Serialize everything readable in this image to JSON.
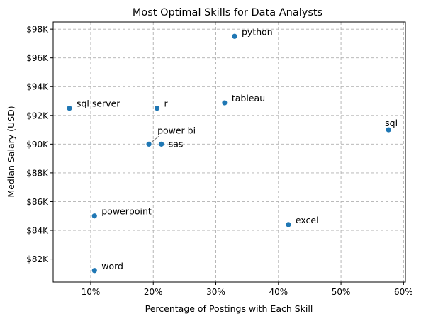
{
  "chart_data": {
    "type": "scatter",
    "title": "Most Optimal Skills for Data Analysts",
    "xlabel": "Percentage of Postings with Each Skill",
    "ylabel": "Median Salary (USD)",
    "xlim": [
      4,
      60.3
    ],
    "ylim": [
      80.4,
      98.5
    ],
    "grid": true,
    "marker_color": "#1f77b4",
    "x_ticks": [
      {
        "value": 10,
        "label": "10%"
      },
      {
        "value": 20,
        "label": "20%"
      },
      {
        "value": 30,
        "label": "30%"
      },
      {
        "value": 40,
        "label": "40%"
      },
      {
        "value": 50,
        "label": "50%"
      },
      {
        "value": 60,
        "label": "60%"
      }
    ],
    "y_ticks": [
      {
        "value": 82,
        "label": "$82K"
      },
      {
        "value": 84,
        "label": "$84K"
      },
      {
        "value": 86,
        "label": "$86K"
      },
      {
        "value": 88,
        "label": "$88K"
      },
      {
        "value": 90,
        "label": "$90K"
      },
      {
        "value": 92,
        "label": "$92K"
      },
      {
        "value": 94,
        "label": "$94K"
      },
      {
        "value": 96,
        "label": "$96K"
      },
      {
        "value": 98,
        "label": "$98K"
      }
    ],
    "points": [
      {
        "label": "python",
        "x": 33.0,
        "y": 97.5
      },
      {
        "label": "tableau",
        "x": 31.4,
        "y": 92.875
      },
      {
        "label": "r",
        "x": 20.6,
        "y": 92.5
      },
      {
        "label": "sql server",
        "x": 6.6,
        "y": 92.5
      },
      {
        "label": "sql",
        "x": 57.6,
        "y": 91.0
      },
      {
        "label": "power bi",
        "x": 19.3,
        "y": 90.0
      },
      {
        "label": "sas",
        "x": 21.3,
        "y": 90.0
      },
      {
        "label": "powerpoint",
        "x": 10.6,
        "y": 85.0
      },
      {
        "label": "excel",
        "x": 41.6,
        "y": 84.4
      },
      {
        "label": "word",
        "x": 10.6,
        "y": 81.2
      }
    ]
  }
}
